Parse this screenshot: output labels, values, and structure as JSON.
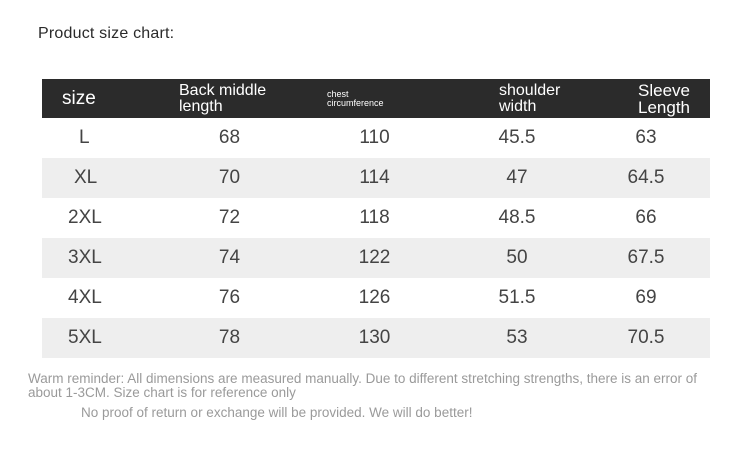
{
  "title": "Product size chart:",
  "table": {
    "headers": {
      "size": "size",
      "back": [
        "Back middle",
        "length"
      ],
      "chest": [
        "chest",
        "circumference"
      ],
      "shoulder": [
        "shoulder",
        "width"
      ],
      "sleeve": [
        "Sleeve",
        "Length"
      ]
    },
    "rows": [
      {
        "size": "L",
        "back": "68",
        "chest": "110",
        "shoulder": "45.5",
        "sleeve": "63"
      },
      {
        "size": "XL",
        "back": "70",
        "chest": "114",
        "shoulder": "47",
        "sleeve": "64.5"
      },
      {
        "size": "2XL",
        "back": "72",
        "chest": "118",
        "shoulder": "48.5",
        "sleeve": "66"
      },
      {
        "size": "3XL",
        "back": "74",
        "chest": "122",
        "shoulder": "50",
        "sleeve": "67.5"
      },
      {
        "size": "4XL",
        "back": "76",
        "chest": "126",
        "shoulder": "51.5",
        "sleeve": "69"
      },
      {
        "size": "5XL",
        "back": "78",
        "chest": "130",
        "shoulder": "53",
        "sleeve": "70.5"
      }
    ]
  },
  "notes": {
    "reminder": "Warm reminder: All dimensions are measured manually. Due to different stretching strengths, there is an error of about 1-3CM. Size chart is for reference only",
    "return_policy": "No proof of return or exchange will be provided. We will do better!"
  },
  "colors": {
    "header_bg": "#2b2b2b",
    "stripe_bg": "#eeeeee",
    "note_text": "#9a9a9a"
  }
}
